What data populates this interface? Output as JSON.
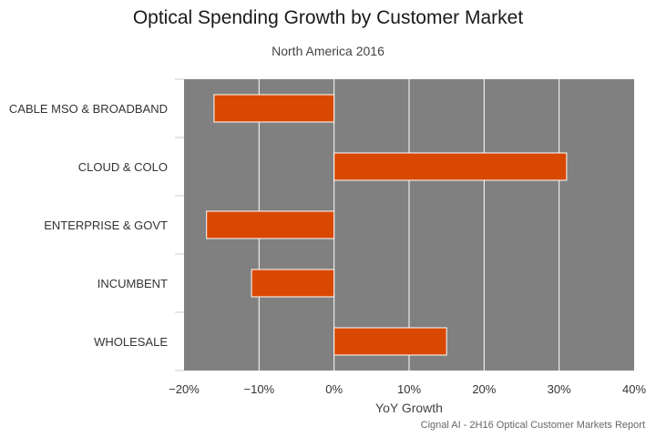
{
  "chart_data": {
    "type": "bar",
    "orientation": "horizontal",
    "title": "Optical Spending Growth by Customer Market",
    "subtitle": "North America 2016",
    "xlabel": "YoY Growth",
    "ylabel": "",
    "categories": [
      "CABLE MSO & BROADBAND",
      "CLOUD & COLO",
      "ENTERPRISE & GOVT",
      "INCUMBENT",
      "WHOLESALE"
    ],
    "values": [
      -16,
      31,
      -17,
      -11,
      15
    ],
    "xlim": [
      -20,
      40
    ],
    "xticks": [
      -20,
      -10,
      0,
      10,
      20,
      30,
      40
    ],
    "xtick_labels": [
      "−20%",
      "−10%",
      "0%",
      "10%",
      "20%",
      "30%",
      "40%"
    ],
    "grid": true,
    "legend": "none",
    "bar_color": "#d94800",
    "plot_background": "#808080",
    "credit": "Cignal AI - 2H16 Optical Customer Markets Report"
  }
}
